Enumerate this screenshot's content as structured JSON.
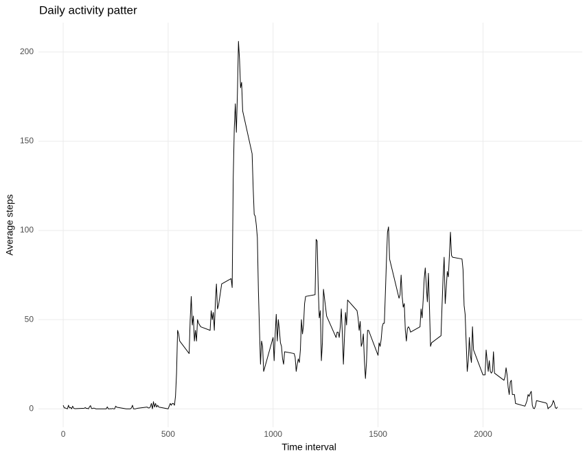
{
  "chart_data": {
    "type": "line",
    "title": "Daily activity patter",
    "x_label": "Time interval",
    "y_label": "Average steps",
    "x": [
      0,
      5,
      10,
      15,
      20,
      25,
      30,
      35,
      40,
      45,
      50,
      55,
      100,
      105,
      110,
      115,
      120,
      125,
      130,
      135,
      140,
      145,
      150,
      155,
      200,
      205,
      210,
      215,
      220,
      225,
      230,
      235,
      240,
      245,
      250,
      255,
      300,
      305,
      310,
      315,
      320,
      325,
      330,
      335,
      340,
      345,
      350,
      355,
      400,
      405,
      410,
      415,
      420,
      425,
      430,
      435,
      440,
      445,
      450,
      455,
      500,
      505,
      510,
      515,
      520,
      525,
      530,
      535,
      540,
      545,
      550,
      555,
      600,
      605,
      610,
      615,
      620,
      625,
      630,
      635,
      640,
      645,
      650,
      655,
      700,
      705,
      710,
      715,
      720,
      725,
      730,
      735,
      740,
      745,
      750,
      755,
      800,
      805,
      810,
      815,
      820,
      825,
      830,
      835,
      840,
      845,
      850,
      855,
      900,
      905,
      910,
      915,
      920,
      925,
      930,
      935,
      940,
      945,
      950,
      955,
      1000,
      1005,
      1010,
      1015,
      1020,
      1025,
      1030,
      1035,
      1040,
      1045,
      1050,
      1055,
      1100,
      1105,
      1110,
      1115,
      1120,
      1125,
      1130,
      1135,
      1140,
      1145,
      1150,
      1155,
      1200,
      1205,
      1210,
      1215,
      1220,
      1225,
      1230,
      1235,
      1240,
      1245,
      1250,
      1255,
      1300,
      1305,
      1310,
      1315,
      1320,
      1325,
      1330,
      1335,
      1340,
      1345,
      1350,
      1355,
      1400,
      1405,
      1410,
      1415,
      1420,
      1425,
      1430,
      1435,
      1440,
      1445,
      1450,
      1455,
      1500,
      1505,
      1510,
      1515,
      1520,
      1525,
      1530,
      1535,
      1540,
      1545,
      1550,
      1555,
      1600,
      1605,
      1610,
      1615,
      1620,
      1625,
      1630,
      1635,
      1640,
      1645,
      1650,
      1655,
      1700,
      1705,
      1710,
      1715,
      1720,
      1725,
      1730,
      1735,
      1740,
      1745,
      1750,
      1755,
      1800,
      1805,
      1810,
      1815,
      1820,
      1825,
      1830,
      1835,
      1840,
      1845,
      1850,
      1855,
      1900,
      1905,
      1910,
      1915,
      1920,
      1925,
      1930,
      1935,
      1940,
      1945,
      1950,
      1955,
      2000,
      2005,
      2010,
      2015,
      2020,
      2025,
      2030,
      2035,
      2040,
      2045,
      2050,
      2055,
      2100,
      2105,
      2110,
      2115,
      2120,
      2125,
      2130,
      2135,
      2140,
      2145,
      2150,
      2155,
      2200,
      2205,
      2210,
      2215,
      2220,
      2225,
      2230,
      2235,
      2240,
      2245,
      2250,
      2255,
      2300,
      2305,
      2310,
      2315,
      2320,
      2325,
      2330,
      2335,
      2340,
      2345,
      2350,
      2355
    ],
    "values": [
      2,
      0.5,
      0.5,
      0.2,
      0,
      2,
      0.5,
      0.8,
      0,
      1.5,
      0.3,
      0.1,
      0.3,
      0.7,
      0.2,
      0.3,
      0,
      1.1,
      1.8,
      0.2,
      0.2,
      0.4,
      0.3,
      0,
      0,
      0,
      1.1,
      0,
      0,
      0.1,
      0,
      0.2,
      0,
      0,
      1.5,
      0.9,
      0,
      0,
      0,
      0,
      0,
      0.5,
      2,
      0,
      0,
      0,
      0.2,
      0.3,
      1,
      0.5,
      0.5,
      1,
      3,
      0,
      4,
      1,
      3,
      1,
      2,
      1,
      0,
      1.5,
      3,
      2,
      3,
      3,
      2,
      7,
      20,
      44,
      42,
      38,
      31,
      50,
      63,
      47,
      52,
      38,
      44,
      38,
      50,
      48,
      47,
      46,
      44,
      55,
      50,
      54,
      44,
      60,
      70,
      56,
      58,
      62,
      66,
      70,
      73,
      68,
      129,
      157,
      171,
      155,
      177,
      206,
      196,
      180,
      183,
      167,
      143,
      124,
      109,
      108,
      103,
      96,
      66,
      45,
      25,
      38,
      35,
      21,
      40,
      27,
      42,
      53,
      38,
      50,
      44,
      37,
      35,
      28,
      25,
      32,
      31,
      29,
      21,
      25,
      28,
      26,
      33,
      50,
      42,
      47,
      59,
      63,
      64,
      95,
      94,
      68,
      51,
      55,
      27,
      37,
      67,
      62,
      57,
      52,
      40,
      43,
      43,
      40,
      46,
      56,
      42,
      25,
      40,
      54,
      47,
      61,
      55,
      51,
      44,
      49,
      35,
      37,
      42,
      27,
      17,
      26,
      44,
      44,
      30,
      37,
      35,
      39,
      46,
      48,
      48,
      65,
      83,
      99,
      102,
      84,
      62,
      64,
      75,
      63,
      57,
      59,
      44,
      38,
      45,
      46,
      45,
      43,
      46,
      56,
      51,
      61,
      73,
      79,
      69,
      60,
      76,
      57,
      35,
      37,
      41,
      58,
      74,
      85,
      59,
      68,
      77,
      74,
      86,
      99,
      86,
      85,
      84,
      78,
      58,
      53,
      37,
      21,
      27,
      40,
      30,
      26,
      46,
      33,
      19,
      19,
      19,
      33,
      27,
      21,
      27,
      21,
      20,
      21,
      32,
      20,
      16,
      18,
      23,
      19,
      12,
      8,
      15,
      16,
      8,
      8,
      8,
      3,
      1.5,
      3,
      4.7,
      8,
      7,
      8.7,
      9.8,
      2,
      0.3,
      0.1,
      1.6,
      4.6,
      3.3,
      2.8,
      0,
      0.8,
      1,
      1.6,
      2.6,
      4.7,
      3.3,
      0.6,
      0.2,
      1.1
    ],
    "color": "#000000",
    "xlim": [
      -118,
      2473
    ],
    "ylim": [
      -10.3,
      216.5
    ],
    "xticks": [
      0,
      500,
      1000,
      1500,
      2000
    ],
    "yticks": [
      0,
      50,
      100,
      150,
      200
    ],
    "grid": true
  }
}
